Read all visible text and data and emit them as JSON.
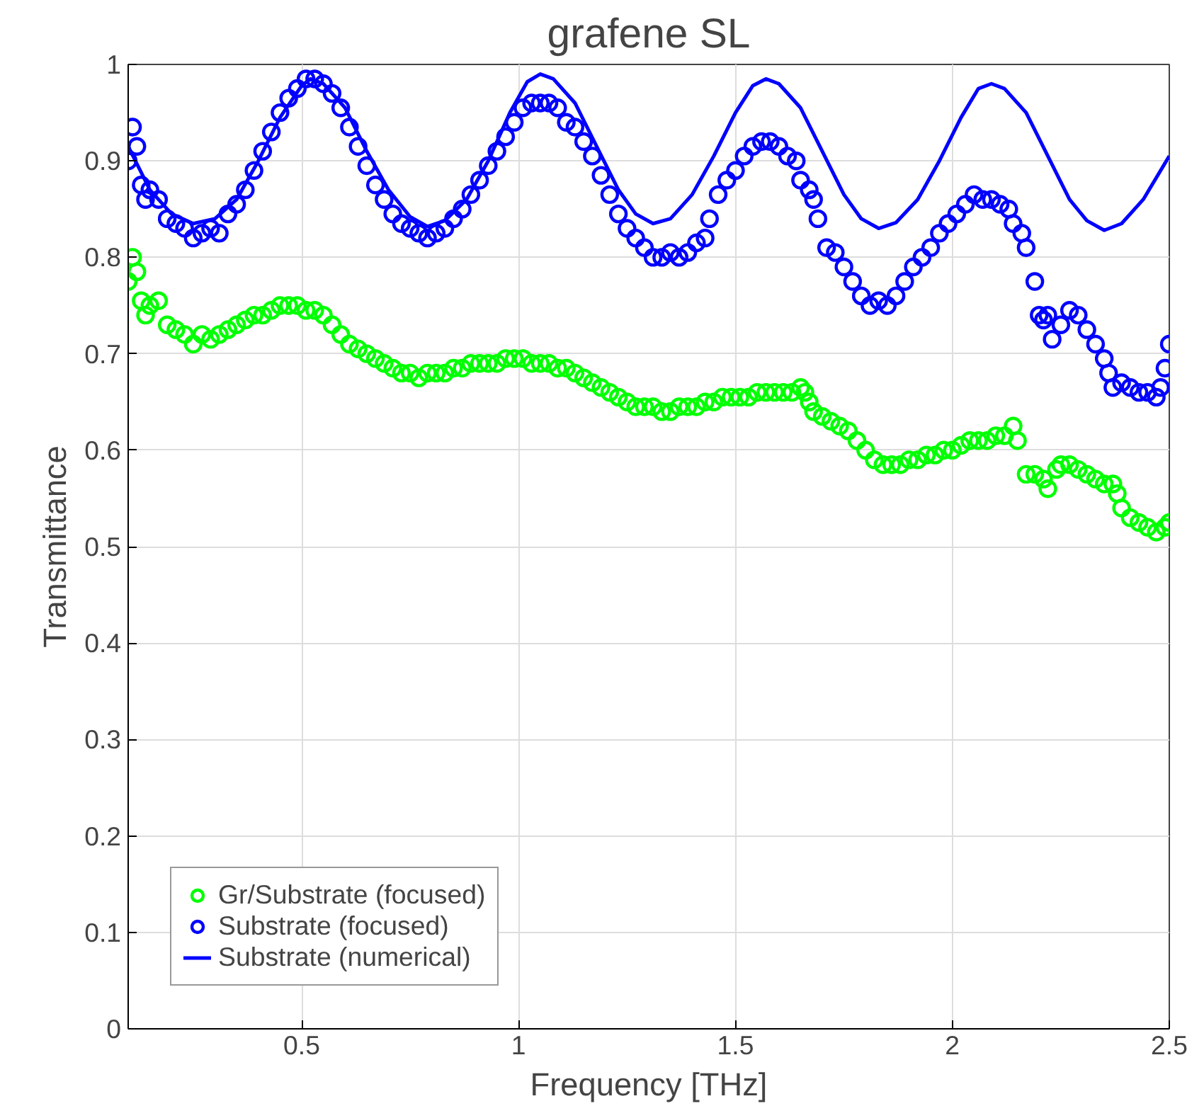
{
  "chart_data": {
    "type": "scatter",
    "title": "grafene SL",
    "xlabel": "Frequency [THz]",
    "ylabel": "Transmittance",
    "xlim": [
      0.1,
      2.5
    ],
    "ylim": [
      0,
      1
    ],
    "xticks": [
      0.5,
      1,
      1.5,
      2,
      2.5
    ],
    "yticks": [
      0,
      0.1,
      0.2,
      0.3,
      0.4,
      0.5,
      0.6,
      0.7,
      0.8,
      0.9,
      1
    ],
    "grid": true,
    "legend": "bottom left",
    "marker": "circle",
    "series": [
      {
        "name": "Gr/Substrate (focused)",
        "color": "#00ff00",
        "x": [
          0.1,
          0.11,
          0.12,
          0.13,
          0.14,
          0.15,
          0.17,
          0.19,
          0.21,
          0.23,
          0.25,
          0.27,
          0.29,
          0.31,
          0.33,
          0.35,
          0.37,
          0.39,
          0.41,
          0.43,
          0.45,
          0.47,
          0.49,
          0.51,
          0.53,
          0.55,
          0.57,
          0.59,
          0.61,
          0.63,
          0.65,
          0.67,
          0.69,
          0.71,
          0.73,
          0.75,
          0.77,
          0.79,
          0.81,
          0.83,
          0.85,
          0.87,
          0.89,
          0.91,
          0.93,
          0.95,
          0.97,
          0.99,
          1.01,
          1.03,
          1.05,
          1.07,
          1.09,
          1.11,
          1.13,
          1.15,
          1.17,
          1.19,
          1.21,
          1.23,
          1.25,
          1.27,
          1.29,
          1.31,
          1.33,
          1.35,
          1.37,
          1.39,
          1.41,
          1.43,
          1.45,
          1.47,
          1.49,
          1.51,
          1.53,
          1.55,
          1.57,
          1.59,
          1.61,
          1.63,
          1.65,
          1.66,
          1.67,
          1.68,
          1.7,
          1.72,
          1.74,
          1.76,
          1.78,
          1.8,
          1.82,
          1.84,
          1.86,
          1.88,
          1.9,
          1.92,
          1.94,
          1.96,
          1.98,
          2.0,
          2.02,
          2.04,
          2.06,
          2.08,
          2.1,
          2.12,
          2.14,
          2.15,
          2.17,
          2.19,
          2.21,
          2.22,
          2.24,
          2.25,
          2.27,
          2.29,
          2.31,
          2.33,
          2.35,
          2.37,
          2.38,
          2.39,
          2.41,
          2.43,
          2.45,
          2.47,
          2.49,
          2.5
        ],
        "values": [
          0.775,
          0.8,
          0.785,
          0.755,
          0.74,
          0.75,
          0.755,
          0.73,
          0.725,
          0.72,
          0.71,
          0.72,
          0.715,
          0.72,
          0.725,
          0.73,
          0.735,
          0.74,
          0.74,
          0.745,
          0.75,
          0.75,
          0.75,
          0.745,
          0.745,
          0.74,
          0.73,
          0.72,
          0.71,
          0.705,
          0.7,
          0.695,
          0.69,
          0.685,
          0.68,
          0.68,
          0.675,
          0.68,
          0.68,
          0.68,
          0.685,
          0.685,
          0.69,
          0.69,
          0.69,
          0.69,
          0.695,
          0.695,
          0.695,
          0.69,
          0.69,
          0.69,
          0.685,
          0.685,
          0.68,
          0.675,
          0.67,
          0.665,
          0.66,
          0.655,
          0.65,
          0.645,
          0.645,
          0.645,
          0.64,
          0.64,
          0.645,
          0.645,
          0.645,
          0.65,
          0.65,
          0.655,
          0.655,
          0.655,
          0.655,
          0.66,
          0.66,
          0.66,
          0.66,
          0.66,
          0.665,
          0.66,
          0.65,
          0.64,
          0.635,
          0.63,
          0.625,
          0.62,
          0.61,
          0.6,
          0.59,
          0.585,
          0.585,
          0.585,
          0.59,
          0.59,
          0.595,
          0.595,
          0.6,
          0.6,
          0.605,
          0.61,
          0.61,
          0.61,
          0.615,
          0.615,
          0.625,
          0.61,
          0.575,
          0.575,
          0.57,
          0.56,
          0.58,
          0.585,
          0.585,
          0.58,
          0.575,
          0.57,
          0.565,
          0.565,
          0.555,
          0.54,
          0.53,
          0.525,
          0.52,
          0.515,
          0.52,
          0.525
        ]
      },
      {
        "name": "Substrate (focused)",
        "color": "#0000ff",
        "x": [
          0.1,
          0.11,
          0.12,
          0.13,
          0.14,
          0.15,
          0.17,
          0.19,
          0.21,
          0.23,
          0.25,
          0.27,
          0.29,
          0.31,
          0.33,
          0.35,
          0.37,
          0.39,
          0.41,
          0.43,
          0.45,
          0.47,
          0.49,
          0.51,
          0.53,
          0.55,
          0.57,
          0.59,
          0.61,
          0.63,
          0.65,
          0.67,
          0.69,
          0.71,
          0.73,
          0.75,
          0.77,
          0.79,
          0.81,
          0.83,
          0.85,
          0.87,
          0.89,
          0.91,
          0.93,
          0.95,
          0.97,
          0.99,
          1.01,
          1.03,
          1.05,
          1.07,
          1.09,
          1.11,
          1.13,
          1.15,
          1.17,
          1.19,
          1.21,
          1.23,
          1.25,
          1.27,
          1.29,
          1.31,
          1.33,
          1.35,
          1.37,
          1.39,
          1.41,
          1.43,
          1.44,
          1.46,
          1.48,
          1.5,
          1.52,
          1.54,
          1.56,
          1.58,
          1.6,
          1.62,
          1.64,
          1.65,
          1.67,
          1.68,
          1.69,
          1.71,
          1.73,
          1.75,
          1.77,
          1.79,
          1.81,
          1.83,
          1.85,
          1.87,
          1.89,
          1.91,
          1.93,
          1.95,
          1.97,
          1.99,
          2.01,
          2.03,
          2.05,
          2.07,
          2.09,
          2.11,
          2.13,
          2.14,
          2.16,
          2.17,
          2.19,
          2.2,
          2.21,
          2.22,
          2.23,
          2.25,
          2.27,
          2.29,
          2.31,
          2.33,
          2.35,
          2.36,
          2.37,
          2.39,
          2.41,
          2.43,
          2.45,
          2.47,
          2.48,
          2.49,
          2.5
        ],
        "values": [
          0.9,
          0.935,
          0.915,
          0.875,
          0.86,
          0.87,
          0.86,
          0.84,
          0.835,
          0.83,
          0.82,
          0.825,
          0.83,
          0.825,
          0.845,
          0.855,
          0.87,
          0.89,
          0.91,
          0.93,
          0.95,
          0.965,
          0.975,
          0.985,
          0.985,
          0.98,
          0.97,
          0.955,
          0.935,
          0.915,
          0.895,
          0.875,
          0.86,
          0.845,
          0.835,
          0.83,
          0.825,
          0.82,
          0.825,
          0.83,
          0.84,
          0.85,
          0.865,
          0.88,
          0.895,
          0.91,
          0.925,
          0.94,
          0.955,
          0.96,
          0.96,
          0.96,
          0.955,
          0.94,
          0.935,
          0.92,
          0.905,
          0.885,
          0.865,
          0.845,
          0.83,
          0.82,
          0.81,
          0.8,
          0.8,
          0.805,
          0.8,
          0.805,
          0.815,
          0.82,
          0.84,
          0.865,
          0.88,
          0.89,
          0.905,
          0.915,
          0.92,
          0.92,
          0.915,
          0.905,
          0.9,
          0.88,
          0.87,
          0.86,
          0.84,
          0.81,
          0.805,
          0.79,
          0.775,
          0.76,
          0.75,
          0.755,
          0.75,
          0.76,
          0.775,
          0.79,
          0.8,
          0.81,
          0.825,
          0.835,
          0.845,
          0.855,
          0.865,
          0.86,
          0.86,
          0.855,
          0.85,
          0.835,
          0.825,
          0.81,
          0.775,
          0.74,
          0.735,
          0.74,
          0.715,
          0.73,
          0.745,
          0.74,
          0.725,
          0.71,
          0.695,
          0.68,
          0.665,
          0.67,
          0.665,
          0.66,
          0.66,
          0.655,
          0.665,
          0.685,
          0.71
        ]
      },
      {
        "name": "Substrate (numerical)",
        "color": "#0000ff",
        "type": "line",
        "line_style": "solid",
        "marker": "none",
        "x": [
          0.1,
          0.15,
          0.2,
          0.25,
          0.3,
          0.35,
          0.4,
          0.45,
          0.5,
          0.52,
          0.55,
          0.6,
          0.65,
          0.7,
          0.75,
          0.79,
          0.83,
          0.88,
          0.93,
          0.98,
          1.02,
          1.05,
          1.08,
          1.13,
          1.18,
          1.23,
          1.27,
          1.31,
          1.35,
          1.4,
          1.45,
          1.5,
          1.54,
          1.57,
          1.6,
          1.65,
          1.7,
          1.75,
          1.79,
          1.83,
          1.87,
          1.92,
          1.97,
          2.02,
          2.06,
          2.09,
          2.12,
          2.17,
          2.22,
          2.27,
          2.31,
          2.35,
          2.39,
          2.44,
          2.5
        ],
        "values": [
          0.915,
          0.87,
          0.845,
          0.835,
          0.84,
          0.86,
          0.9,
          0.945,
          0.978,
          0.985,
          0.98,
          0.955,
          0.91,
          0.87,
          0.842,
          0.832,
          0.838,
          0.86,
          0.9,
          0.95,
          0.982,
          0.99,
          0.985,
          0.96,
          0.915,
          0.87,
          0.845,
          0.835,
          0.84,
          0.865,
          0.905,
          0.95,
          0.978,
          0.985,
          0.98,
          0.955,
          0.91,
          0.865,
          0.84,
          0.83,
          0.836,
          0.86,
          0.9,
          0.945,
          0.975,
          0.98,
          0.975,
          0.95,
          0.905,
          0.86,
          0.838,
          0.828,
          0.835,
          0.86,
          0.905
        ]
      }
    ]
  }
}
